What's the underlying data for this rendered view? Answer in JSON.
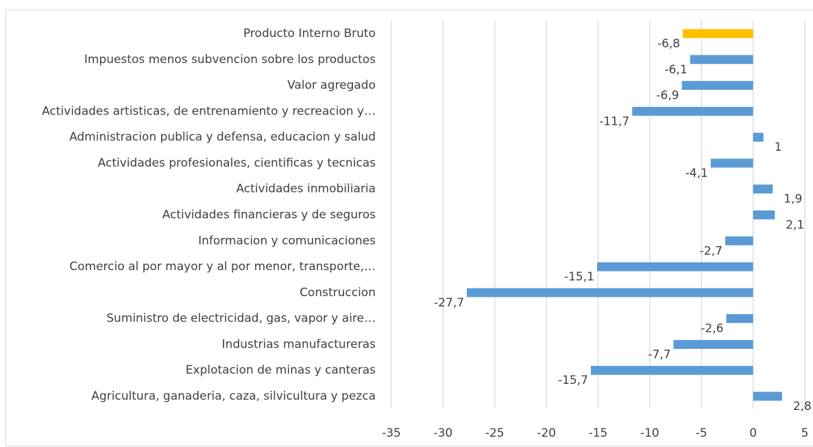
{
  "chart_data": {
    "type": "barh",
    "categories": [
      "Producto Interno Bruto",
      "Impuestos menos subvencion sobre los productos",
      "Valor agregado",
      "Actividades artisticas, de entrenamiento y recreacion y…",
      "Administracion publica y defensa, educacion y salud",
      "Actividades profesionales, cientificas y tecnicas",
      "Actividades inmobiliaria",
      "Actividades financieras y de seguros",
      "Informacion y comunicaciones",
      "Comercio al por mayor y al por menor, transporte,…",
      "Construccion",
      "Suministro de electricidad, gas, vapor y aire…",
      "Industrias manufactureras",
      "Explotacion de minas y canteras",
      "Agricultura, ganaderia, caza, silvicultura y pezca"
    ],
    "values": [
      -6.8,
      -6.1,
      -6.9,
      -11.7,
      1,
      -4.1,
      1.9,
      2.1,
      -2.7,
      -15.1,
      -27.7,
      -2.6,
      -7.7,
      -15.7,
      2.8
    ],
    "value_labels": [
      "-6,8",
      "-6,1",
      "-6,9",
      "-11,7",
      "1",
      "-4,1",
      "1,9",
      "2,1",
      "-2,7",
      "-15,1",
      "-27,7",
      "-2,6",
      "-7,7",
      "-15,7",
      "2,8"
    ],
    "colors": [
      "#ffc000",
      "#5b9bd5",
      "#5b9bd5",
      "#5b9bd5",
      "#5b9bd5",
      "#5b9bd5",
      "#5b9bd5",
      "#5b9bd5",
      "#5b9bd5",
      "#5b9bd5",
      "#5b9bd5",
      "#5b9bd5",
      "#5b9bd5",
      "#5b9bd5",
      "#5b9bd5"
    ],
    "xlim": [
      -35,
      5
    ],
    "xticks": [
      -35,
      -30,
      -25,
      -20,
      -15,
      -10,
      -5,
      0,
      5
    ],
    "grid": true
  }
}
